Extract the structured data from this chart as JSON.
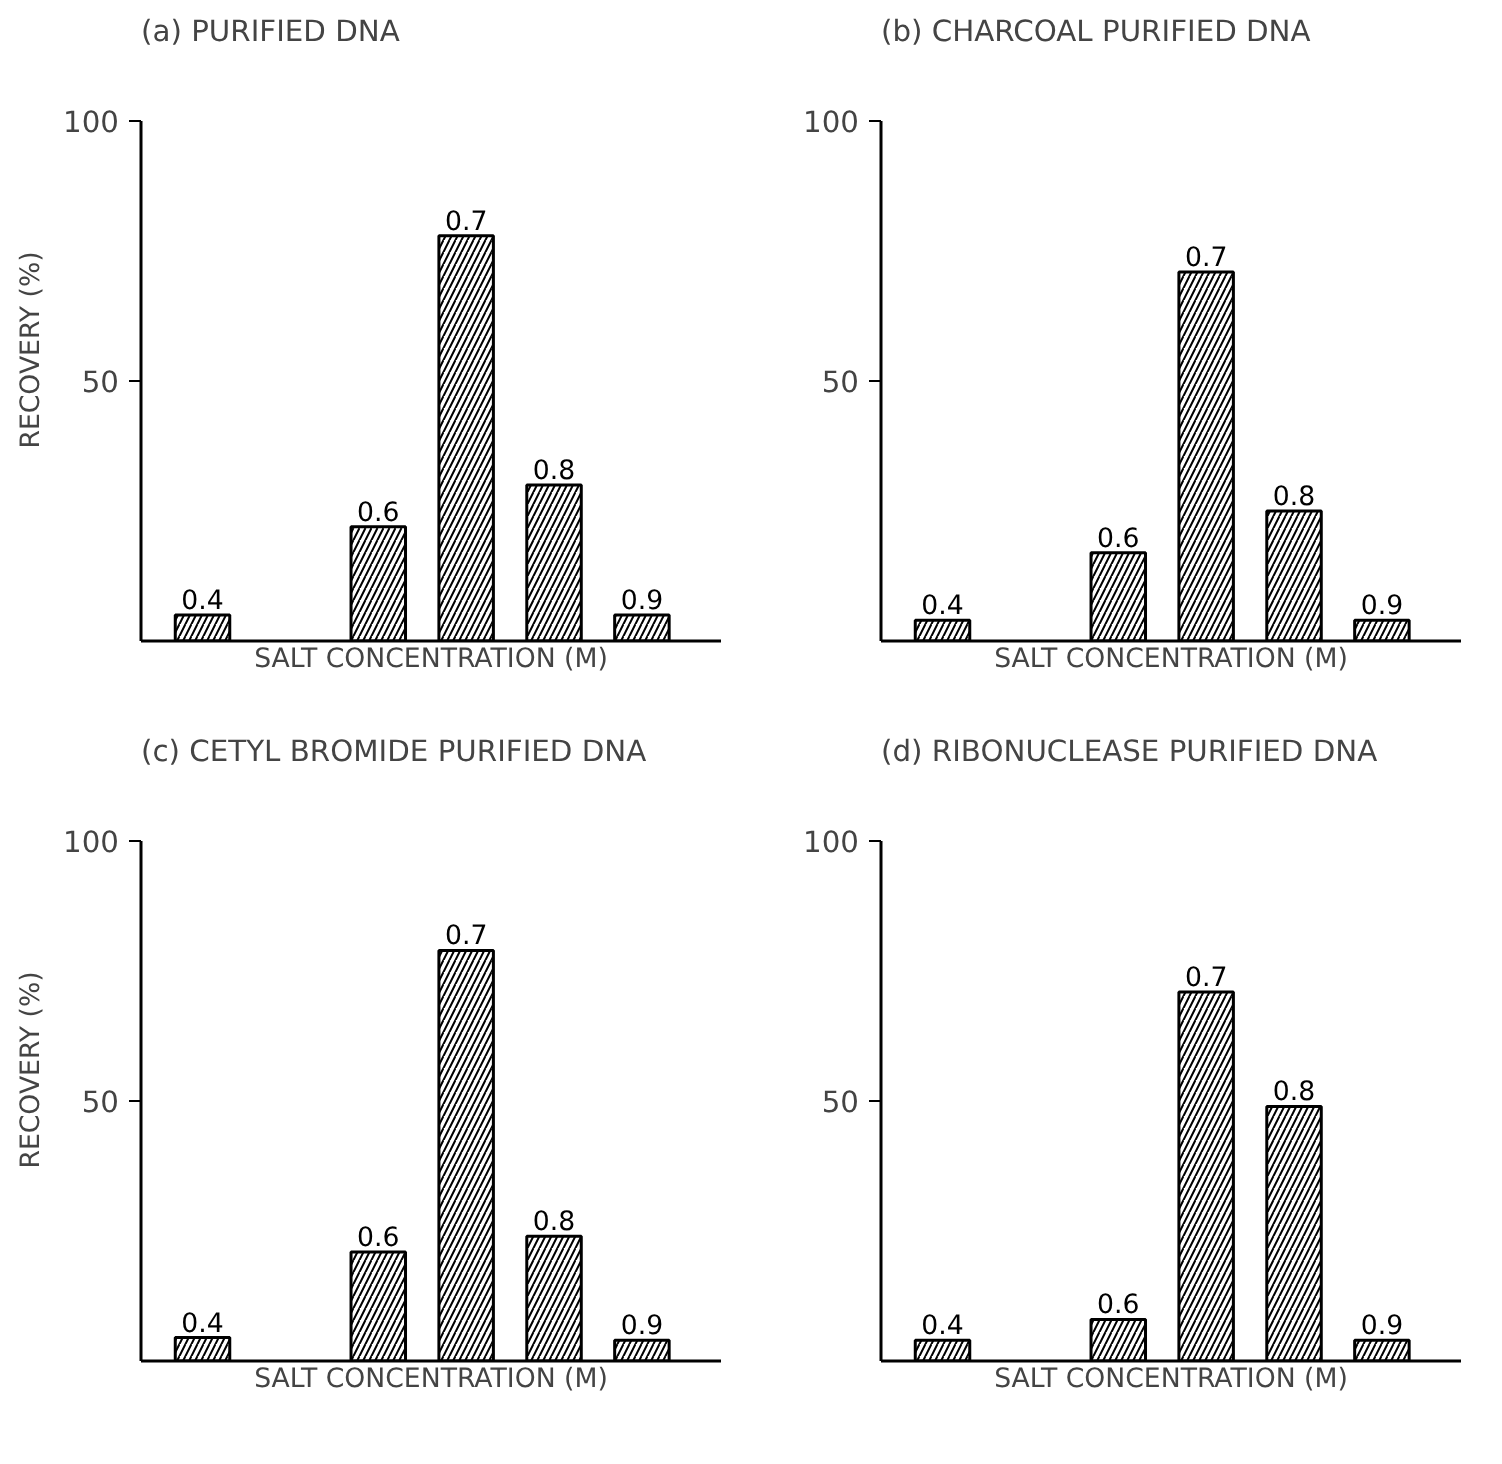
{
  "chart_data": [
    {
      "type": "bar",
      "title": "(a) PURIFIED DNA",
      "xlabel": "SALT CONCENTRATION (M)",
      "ylabel": "RECOVERY (%)",
      "categories": [
        "0.4",
        null,
        "0.6",
        "0.7",
        "0.8",
        "0.9"
      ],
      "values": [
        5,
        null,
        22,
        78,
        30,
        5
      ],
      "color": "#ffffff",
      "ylim": [
        0,
        100
      ],
      "yticks": [
        50,
        100
      ],
      "grid": false,
      "tick_labels": "y"
    },
    {
      "type": "bar",
      "title": "(b) CHARCOAL PURIFIED DNA",
      "xlabel": "SALT CONCENTRATION (M)",
      "categories": [
        "0.4",
        null,
        "0.6",
        "0.7",
        "0.8",
        "0.9"
      ],
      "values": [
        4,
        null,
        17,
        71,
        25,
        4
      ],
      "color": "#ffffff",
      "ylim": [
        0,
        100
      ],
      "yticks": [
        50,
        100
      ],
      "grid": false,
      "tick_labels": "y"
    },
    {
      "type": "bar",
      "title": "(c) CETYL BROMIDE PURIFIED DNA",
      "xlabel": "SALT CONCENTRATION (M)",
      "ylabel": "RECOVERY (%)",
      "categories": [
        "0.4",
        null,
        "0.6",
        "0.7",
        "0.8",
        "0.9"
      ],
      "values": [
        4.5,
        null,
        21,
        79,
        24,
        4
      ],
      "color": "#ffffff",
      "ylim": [
        0,
        100
      ],
      "yticks": [
        50,
        100
      ],
      "grid": false,
      "tick_labels": "y"
    },
    {
      "type": "bar",
      "title": "(d) RIBONUCLEASE PURIFIED DNA",
      "xlabel": "SALT CONCENTRATION (M)",
      "categories": [
        "0.4",
        null,
        "0.6",
        "0.7",
        "0.8",
        "0.9"
      ],
      "values": [
        4,
        null,
        8,
        71,
        49,
        4
      ],
      "color": "#ffffff",
      "ylim": [
        0,
        100
      ],
      "yticks": [
        50,
        100
      ],
      "grid": false,
      "tick_labels": "y"
    }
  ]
}
